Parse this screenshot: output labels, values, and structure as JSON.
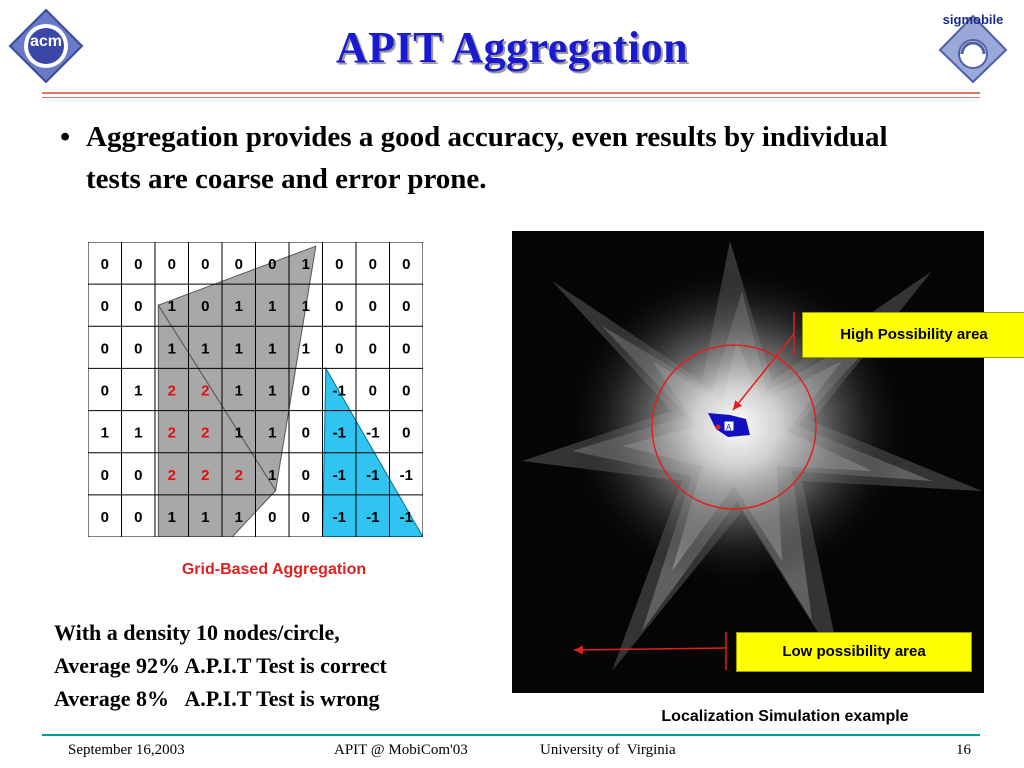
{
  "logos": {
    "left": "acm",
    "right": "sigmobile"
  },
  "slide": {
    "title": "APIT Aggregation",
    "bullet": "Aggregation provides a good accuracy, even results by individual tests are coarse and error prone."
  },
  "grid": {
    "caption": "Grid-Based Aggregation",
    "rows": [
      [
        "0",
        "0",
        "0",
        "0",
        "0",
        "0",
        "1",
        "0",
        "0",
        "0"
      ],
      [
        "0",
        "0",
        "1",
        "0",
        "1",
        "1",
        "1",
        "0",
        "0",
        "0"
      ],
      [
        "0",
        "0",
        "1",
        "1",
        "1",
        "1",
        "1",
        "0",
        "0",
        "0"
      ],
      [
        "0",
        "1",
        "2",
        "2",
        "1",
        "1",
        "0",
        "-1",
        "0",
        "0"
      ],
      [
        "1",
        "1",
        "2",
        "2",
        "1",
        "1",
        "0",
        "-1",
        "-1",
        "0"
      ],
      [
        "0",
        "0",
        "2",
        "2",
        "2",
        "1",
        "0",
        "-1",
        "-1",
        "-1"
      ],
      [
        "0",
        "0",
        "1",
        "1",
        "1",
        "0",
        "0",
        "-1",
        "-1",
        "-1"
      ]
    ],
    "colors": {
      "positive": "#e01010",
      "default": "#000000",
      "gray_triangle": "#a8a8a8",
      "blue_triangle": "#30c4f0"
    }
  },
  "stats": {
    "line1": "With a density 10 nodes/circle,",
    "line2": "Average 92% A.P.I.T Test is correct",
    "line3": "Average 8%   A.P.I.T Test is wrong"
  },
  "simulation": {
    "high_label": "High Possibility area",
    "low_label": "Low possibility area",
    "caption": "Localization Simulation example",
    "marker_label": "A",
    "colors": {
      "callout_bg": "#ffff00",
      "arrow": "#e02020",
      "circle": "#e02020",
      "region": "#1010c0"
    }
  },
  "footer": {
    "date": "September 16,2003",
    "venue": "APIT @ MobiCom'03",
    "institution": "University of  Virginia",
    "page": "16"
  },
  "theme": {
    "title_color": "#1a1ad0",
    "rule_color": "#d97a6a",
    "footer_rule": "#00a0a0"
  }
}
